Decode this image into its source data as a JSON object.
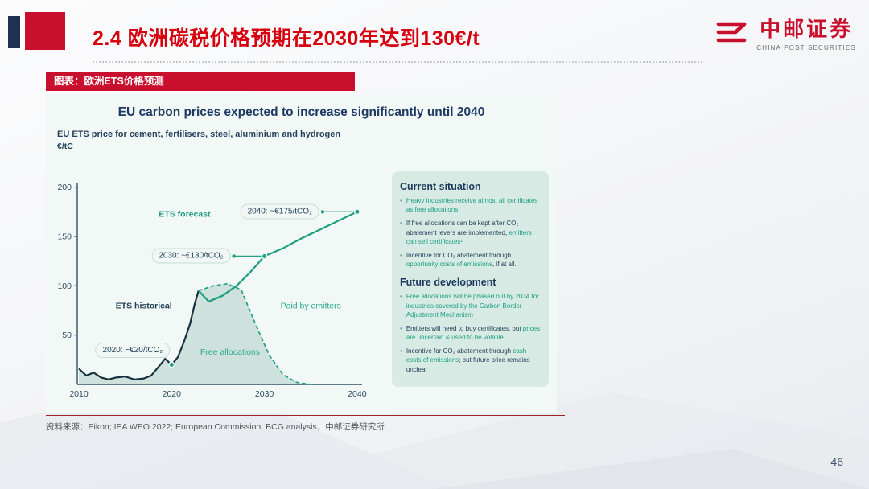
{
  "page": {
    "title": "2.4 欧洲碳税价格预期在2030年达到130€/t",
    "page_number": "46",
    "source": "资料来源：Eikon; IEA WEO 2022; European Commission; BCG analysis，中邮证券研究所"
  },
  "logo": {
    "name_cn": "中邮证券",
    "name_en": "CHINA POST SECURITIES"
  },
  "figure_banner": "图表：欧洲ETS价格预测",
  "colors": {
    "brand_red": "#c8102e",
    "navy": "#1e3a63",
    "teal": "#1d9e82",
    "dark_line": "#16323f",
    "panel_bg": "#d7ebe4"
  },
  "panel": {
    "sections": [
      {
        "heading": "Current situation",
        "bullets": [
          [
            {
              "t": "Heavy industries receive almost all certificates as free allocations",
              "c": "teal"
            }
          ],
          [
            {
              "t": "If free allocations can be kept after CO₂ abatement levers are implemented, ",
              "c": "navy"
            },
            {
              "t": "emitters can sell certificates¹",
              "c": "teal"
            }
          ],
          [
            {
              "t": "Incentive for CO₂ abatement through ",
              "c": "navy"
            },
            {
              "t": "opportunity costs of emissions",
              "c": "teal"
            },
            {
              "t": ", if at all.",
              "c": "navy"
            }
          ]
        ]
      },
      {
        "heading": "Future development",
        "bullets": [
          [
            {
              "t": "Free allocations will be phased out by 2034 for industries covered by the Carbon Border Adjustment Mechanism",
              "c": "teal"
            }
          ],
          [
            {
              "t": "Emitters will need to buy certificates, but ",
              "c": "navy"
            },
            {
              "t": "prices are uncertain & used to be volatile",
              "c": "teal"
            }
          ],
          [
            {
              "t": "Incentive for CO₂ abatement through ",
              "c": "navy"
            },
            {
              "t": "cash costs of emissions",
              "c": "teal"
            },
            {
              "t": "; but future price remains unclear",
              "c": "navy"
            }
          ]
        ]
      }
    ]
  },
  "chart_data": {
    "type": "line",
    "title": "EU carbon prices expected to increase significantly until 2040",
    "subtitle": "EU ETS price for cement, fertilisers, steel, aluminium and hydrogen",
    "xlabel": "",
    "ylabel": "€/tC",
    "xlim": [
      2009,
      2042
    ],
    "ylim": [
      0,
      210
    ],
    "yticks": [
      50,
      100,
      150,
      200
    ],
    "xticks": [
      2010,
      2020,
      2030,
      2040
    ],
    "grid": false,
    "legend_position": "inline-labels",
    "series": [
      {
        "name": "ETS historical",
        "color": "#16323f",
        "style": "solid",
        "x": [
          2010,
          2010.8,
          2011.6,
          2012.4,
          2013.2,
          2014,
          2015,
          2016,
          2017,
          2017.8,
          2018.6,
          2019.3,
          2020,
          2020.7,
          2021.4,
          2022,
          2022.5,
          2022.9
        ],
        "y": [
          16,
          9,
          12,
          7,
          5,
          7,
          8,
          5,
          6,
          9,
          18,
          26,
          20,
          28,
          45,
          62,
          82,
          95
        ]
      },
      {
        "name": "ETS forecast",
        "color": "#1d9e82",
        "style": "solid",
        "x": [
          2022.9,
          2024,
          2025.5,
          2027,
          2028.5,
          2030,
          2032,
          2034,
          2036,
          2038,
          2040
        ],
        "y": [
          95,
          84,
          90,
          100,
          114,
          130,
          138,
          148,
          157,
          166,
          175
        ]
      },
      {
        "name": "Free allocations (phase-out boundary)",
        "color": "#23a189",
        "style": "dashed",
        "x": [
          2022.9,
          2024.5,
          2026,
          2027.5,
          2029,
          2030.5,
          2032,
          2033.5,
          2035
        ],
        "y": [
          95,
          100,
          102,
          96,
          62,
          30,
          10,
          2,
          0
        ]
      }
    ],
    "area": {
      "label": "Free allocations",
      "fill": "#cbded9"
    },
    "annotations": [
      {
        "label": "2040: ~€175/tCO₂",
        "x": 2040,
        "y": 175,
        "pos": "left",
        "conn": 43
      },
      {
        "label": "2030: ~€130/tCO₂",
        "x": 2030,
        "y": 130,
        "pos": "left",
        "conn": 38
      },
      {
        "label": "2020: ~€20/tCO₂",
        "x": 2020,
        "y": 20,
        "pos": "above-left",
        "conn": 0
      }
    ],
    "labels": [
      {
        "text": "ETS forecast",
        "x": 2021.4,
        "y": 170,
        "color": "#1d9e82",
        "bold": true
      },
      {
        "text": "ETS historical",
        "x": 2017.0,
        "y": 77,
        "color": "#1c3d52",
        "bold": true
      },
      {
        "text": "Paid by emitters",
        "x": 2035.0,
        "y": 77,
        "color": "#2aa88e",
        "bold": false
      },
      {
        "text": "Free allocations",
        "x": 2026.3,
        "y": 30,
        "color": "#2aa88e",
        "bold": false
      }
    ]
  }
}
